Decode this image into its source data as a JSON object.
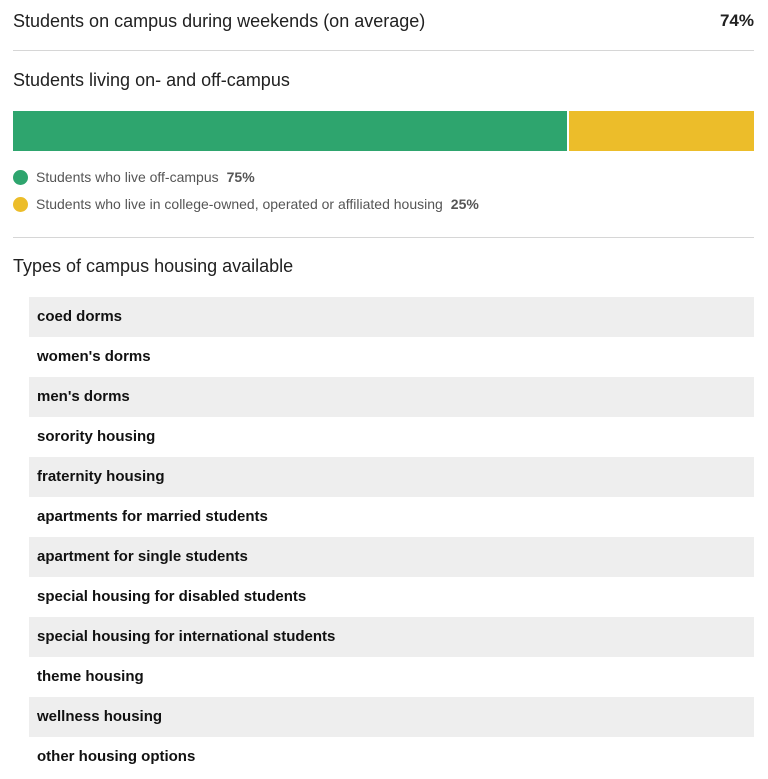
{
  "weekend": {
    "label": "Students on campus during weekends (on average)",
    "value": "74%"
  },
  "living": {
    "title": "Students living on- and off-campus",
    "segments": [
      {
        "label": "Students who live off-campus",
        "value": 75,
        "display": "75%",
        "color": "#2ea56e"
      },
      {
        "label": "Students who live in college-owned, operated or affiliated housing",
        "value": 25,
        "display": "25%",
        "color": "#ecbd2a"
      }
    ]
  },
  "housing": {
    "title": "Types of campus housing available",
    "items": [
      "coed dorms",
      "women's dorms",
      "men's dorms",
      "sorority housing",
      "fraternity housing",
      "apartments for married students",
      "apartment for single students",
      "special housing for disabled students",
      "special housing for international students",
      "theme housing",
      "wellness housing",
      "other housing options"
    ]
  }
}
